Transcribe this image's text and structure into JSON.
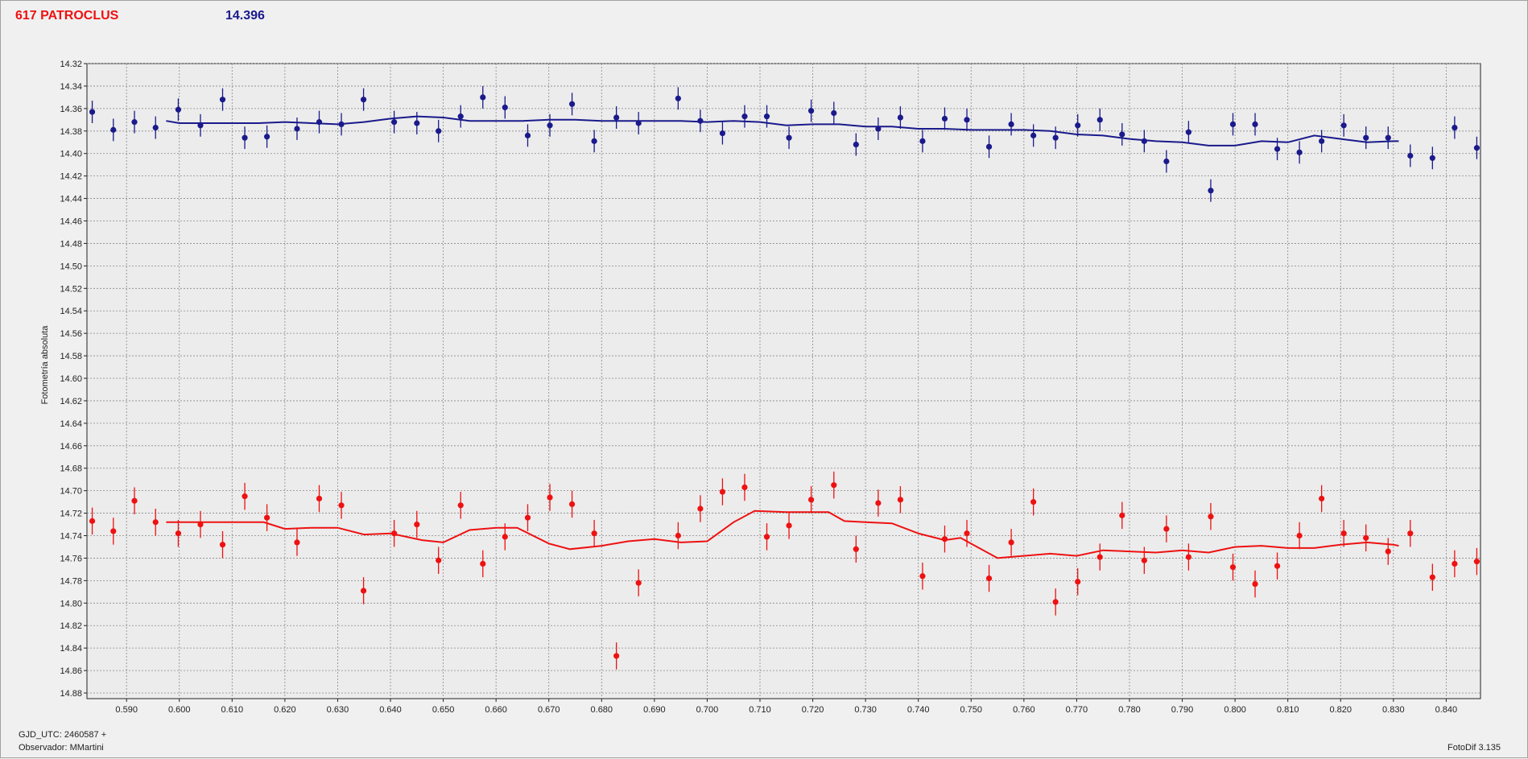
{
  "header": {
    "title": "617 PATROCLUS",
    "mean_magnitude": "14.396"
  },
  "footer": {
    "gjd_label": "GJD_UTC: 2460587 +",
    "observer_label": "Observador: MMartini",
    "version_label": "FotoDif 3.135"
  },
  "colors": {
    "title": "#ee1111",
    "series_top": "#1a1a8c",
    "series_bottom": "#ee1111",
    "plot_background": "#ececec",
    "grid": "#888888"
  },
  "chart_data": {
    "type": "scatter",
    "ylabel": "Fotometría absoluta",
    "xlabel": "",
    "xlim": [
      0.5825,
      0.8465
    ],
    "ylim": [
      14.32,
      14.885
    ],
    "y_inverted": true,
    "grid": true,
    "x_ticks": [
      0.59,
      0.6,
      0.61,
      0.62,
      0.63,
      0.64,
      0.65,
      0.66,
      0.67,
      0.68,
      0.69,
      0.7,
      0.71,
      0.72,
      0.73,
      0.74,
      0.75,
      0.76,
      0.77,
      0.78,
      0.79,
      0.8,
      0.81,
      0.82,
      0.83,
      0.84
    ],
    "x_tick_labels": [
      "0.590",
      "0.600",
      "0.610",
      "0.620",
      "0.630",
      "0.640",
      "0.650",
      "0.660",
      "0.670",
      "0.680",
      "0.690",
      "0.700",
      "0.710",
      "0.720",
      "0.730",
      "0.740",
      "0.750",
      "0.760",
      "0.770",
      "0.780",
      "0.790",
      "0.800",
      "0.810",
      "0.820",
      "0.830",
      "0.840"
    ],
    "y_ticks": [
      14.32,
      14.34,
      14.36,
      14.38,
      14.4,
      14.42,
      14.44,
      14.46,
      14.48,
      14.5,
      14.52,
      14.54,
      14.56,
      14.58,
      14.6,
      14.62,
      14.64,
      14.66,
      14.68,
      14.7,
      14.72,
      14.74,
      14.76,
      14.78,
      14.8,
      14.82,
      14.84,
      14.86,
      14.88
    ],
    "y_tick_labels": [
      "14.32",
      "14.34",
      "14.36",
      "14.38",
      "14.40",
      "14.42",
      "14.44",
      "14.46",
      "14.48",
      "14.50",
      "14.52",
      "14.54",
      "14.56",
      "14.58",
      "14.60",
      "14.62",
      "14.64",
      "14.66",
      "14.68",
      "14.70",
      "14.72",
      "14.74",
      "14.76",
      "14.78",
      "14.80",
      "14.82",
      "14.84",
      "14.86",
      "14.88"
    ],
    "series": [
      {
        "color": "#1a1a8c",
        "error": 0.01,
        "points": [
          [
            0.5835,
            14.363
          ],
          [
            0.5875,
            14.379
          ],
          [
            0.5915,
            14.372
          ],
          [
            0.5955,
            14.377
          ],
          [
            0.5998,
            14.361
          ],
          [
            0.604,
            14.375
          ],
          [
            0.6082,
            14.352
          ],
          [
            0.6124,
            14.386
          ],
          [
            0.6166,
            14.385
          ],
          [
            0.6223,
            14.378
          ],
          [
            0.6265,
            14.372
          ],
          [
            0.6307,
            14.374
          ],
          [
            0.6349,
            14.352
          ],
          [
            0.6407,
            14.372
          ],
          [
            0.645,
            14.373
          ],
          [
            0.6491,
            14.38
          ],
          [
            0.6533,
            14.367
          ],
          [
            0.6575,
            14.35
          ],
          [
            0.6617,
            14.359
          ],
          [
            0.666,
            14.384
          ],
          [
            0.6702,
            14.375
          ],
          [
            0.6744,
            14.356
          ],
          [
            0.6786,
            14.389
          ],
          [
            0.6828,
            14.368
          ],
          [
            0.687,
            14.373
          ],
          [
            0.6945,
            14.351
          ],
          [
            0.6987,
            14.371
          ],
          [
            0.7029,
            14.382
          ],
          [
            0.7071,
            14.367
          ],
          [
            0.7113,
            14.367
          ],
          [
            0.7155,
            14.386
          ],
          [
            0.7197,
            14.362
          ],
          [
            0.724,
            14.364
          ],
          [
            0.7282,
            14.392
          ],
          [
            0.7324,
            14.378
          ],
          [
            0.7366,
            14.368
          ],
          [
            0.7408,
            14.389
          ],
          [
            0.745,
            14.369
          ],
          [
            0.7492,
            14.37
          ],
          [
            0.7534,
            14.394
          ],
          [
            0.7576,
            14.374
          ],
          [
            0.7618,
            14.384
          ],
          [
            0.766,
            14.386
          ],
          [
            0.7702,
            14.375
          ],
          [
            0.7744,
            14.37
          ],
          [
            0.7786,
            14.383
          ],
          [
            0.7828,
            14.389
          ],
          [
            0.787,
            14.407
          ],
          [
            0.7912,
            14.381
          ],
          [
            0.7954,
            14.433
          ],
          [
            0.7996,
            14.374
          ],
          [
            0.8038,
            14.374
          ],
          [
            0.808,
            14.396
          ],
          [
            0.8122,
            14.399
          ],
          [
            0.8164,
            14.389
          ],
          [
            0.8206,
            14.375
          ],
          [
            0.8248,
            14.386
          ],
          [
            0.829,
            14.386
          ],
          [
            0.8332,
            14.402
          ],
          [
            0.8374,
            14.404
          ],
          [
            0.8416,
            14.377
          ],
          [
            0.8458,
            14.395
          ]
        ],
        "trend": [
          [
            0.5975,
            14.371
          ],
          [
            0.6,
            14.373
          ],
          [
            0.605,
            14.373
          ],
          [
            0.61,
            14.373
          ],
          [
            0.615,
            14.373
          ],
          [
            0.62,
            14.372
          ],
          [
            0.625,
            14.373
          ],
          [
            0.63,
            14.374
          ],
          [
            0.635,
            14.372
          ],
          [
            0.64,
            14.369
          ],
          [
            0.645,
            14.367
          ],
          [
            0.65,
            14.368
          ],
          [
            0.655,
            14.371
          ],
          [
            0.66,
            14.371
          ],
          [
            0.665,
            14.371
          ],
          [
            0.67,
            14.37
          ],
          [
            0.675,
            14.37
          ],
          [
            0.68,
            14.371
          ],
          [
            0.685,
            14.371
          ],
          [
            0.69,
            14.371
          ],
          [
            0.695,
            14.371
          ],
          [
            0.7,
            14.372
          ],
          [
            0.705,
            14.371
          ],
          [
            0.71,
            14.372
          ],
          [
            0.715,
            14.375
          ],
          [
            0.72,
            14.374
          ],
          [
            0.725,
            14.374
          ],
          [
            0.73,
            14.376
          ],
          [
            0.735,
            14.376
          ],
          [
            0.74,
            14.378
          ],
          [
            0.745,
            14.378
          ],
          [
            0.75,
            14.379
          ],
          [
            0.755,
            14.379
          ],
          [
            0.76,
            14.379
          ],
          [
            0.765,
            14.38
          ],
          [
            0.77,
            14.383
          ],
          [
            0.775,
            14.384
          ],
          [
            0.78,
            14.387
          ],
          [
            0.785,
            14.389
          ],
          [
            0.79,
            14.39
          ],
          [
            0.795,
            14.393
          ],
          [
            0.8,
            14.393
          ],
          [
            0.805,
            14.389
          ],
          [
            0.81,
            14.39
          ],
          [
            0.815,
            14.384
          ],
          [
            0.82,
            14.387
          ],
          [
            0.825,
            14.39
          ],
          [
            0.83,
            14.389
          ],
          [
            0.831,
            14.389
          ]
        ]
      },
      {
        "color": "#ee1111",
        "error": 0.012,
        "points": [
          [
            0.5835,
            14.727
          ],
          [
            0.5875,
            14.736
          ],
          [
            0.5915,
            14.709
          ],
          [
            0.5955,
            14.728
          ],
          [
            0.5998,
            14.738
          ],
          [
            0.604,
            14.73
          ],
          [
            0.6082,
            14.748
          ],
          [
            0.6124,
            14.705
          ],
          [
            0.6166,
            14.724
          ],
          [
            0.6223,
            14.746
          ],
          [
            0.6265,
            14.707
          ],
          [
            0.6307,
            14.713
          ],
          [
            0.6349,
            14.789
          ],
          [
            0.6407,
            14.738
          ],
          [
            0.645,
            14.73
          ],
          [
            0.6491,
            14.762
          ],
          [
            0.6533,
            14.713
          ],
          [
            0.6575,
            14.765
          ],
          [
            0.6617,
            14.741
          ],
          [
            0.666,
            14.724
          ],
          [
            0.6702,
            14.706
          ],
          [
            0.6744,
            14.712
          ],
          [
            0.6786,
            14.738
          ],
          [
            0.6828,
            14.847
          ],
          [
            0.687,
            14.782
          ],
          [
            0.6945,
            14.74
          ],
          [
            0.6987,
            14.716
          ],
          [
            0.7029,
            14.701
          ],
          [
            0.7071,
            14.697
          ],
          [
            0.7113,
            14.741
          ],
          [
            0.7155,
            14.731
          ],
          [
            0.7197,
            14.708
          ],
          [
            0.724,
            14.695
          ],
          [
            0.7282,
            14.752
          ],
          [
            0.7324,
            14.711
          ],
          [
            0.7366,
            14.708
          ],
          [
            0.7408,
            14.776
          ],
          [
            0.745,
            14.743
          ],
          [
            0.7492,
            14.738
          ],
          [
            0.7534,
            14.778
          ],
          [
            0.7576,
            14.746
          ],
          [
            0.7618,
            14.71
          ],
          [
            0.766,
            14.799
          ],
          [
            0.7702,
            14.781
          ],
          [
            0.7744,
            14.759
          ],
          [
            0.7786,
            14.722
          ],
          [
            0.7828,
            14.762
          ],
          [
            0.787,
            14.734
          ],
          [
            0.7912,
            14.759
          ],
          [
            0.7954,
            14.723
          ],
          [
            0.7996,
            14.768
          ],
          [
            0.8038,
            14.783
          ],
          [
            0.808,
            14.767
          ],
          [
            0.8122,
            14.74
          ],
          [
            0.8164,
            14.707
          ],
          [
            0.8206,
            14.738
          ],
          [
            0.8248,
            14.742
          ],
          [
            0.829,
            14.754
          ],
          [
            0.8332,
            14.738
          ],
          [
            0.8374,
            14.777
          ],
          [
            0.8416,
            14.765
          ],
          [
            0.8458,
            14.763
          ]
        ],
        "trend": [
          [
            0.5975,
            14.728
          ],
          [
            0.605,
            14.728
          ],
          [
            0.61,
            14.728
          ],
          [
            0.616,
            14.728
          ],
          [
            0.62,
            14.734
          ],
          [
            0.625,
            14.733
          ],
          [
            0.63,
            14.733
          ],
          [
            0.635,
            14.739
          ],
          [
            0.64,
            14.738
          ],
          [
            0.646,
            14.744
          ],
          [
            0.65,
            14.746
          ],
          [
            0.655,
            14.735
          ],
          [
            0.66,
            14.733
          ],
          [
            0.664,
            14.733
          ],
          [
            0.67,
            14.747
          ],
          [
            0.674,
            14.752
          ],
          [
            0.68,
            14.749
          ],
          [
            0.685,
            14.745
          ],
          [
            0.69,
            14.743
          ],
          [
            0.695,
            14.746
          ],
          [
            0.7,
            14.745
          ],
          [
            0.705,
            14.728
          ],
          [
            0.709,
            14.718
          ],
          [
            0.715,
            14.719
          ],
          [
            0.72,
            14.719
          ],
          [
            0.723,
            14.719
          ],
          [
            0.726,
            14.727
          ],
          [
            0.73,
            14.728
          ],
          [
            0.735,
            14.729
          ],
          [
            0.74,
            14.738
          ],
          [
            0.745,
            14.744
          ],
          [
            0.748,
            14.742
          ],
          [
            0.755,
            14.76
          ],
          [
            0.76,
            14.758
          ],
          [
            0.765,
            14.756
          ],
          [
            0.77,
            14.758
          ],
          [
            0.775,
            14.753
          ],
          [
            0.78,
            14.754
          ],
          [
            0.785,
            14.755
          ],
          [
            0.79,
            14.753
          ],
          [
            0.795,
            14.755
          ],
          [
            0.8,
            14.75
          ],
          [
            0.805,
            14.749
          ],
          [
            0.81,
            14.751
          ],
          [
            0.815,
            14.751
          ],
          [
            0.82,
            14.748
          ],
          [
            0.825,
            14.746
          ],
          [
            0.83,
            14.748
          ],
          [
            0.831,
            14.749
          ]
        ]
      }
    ]
  }
}
